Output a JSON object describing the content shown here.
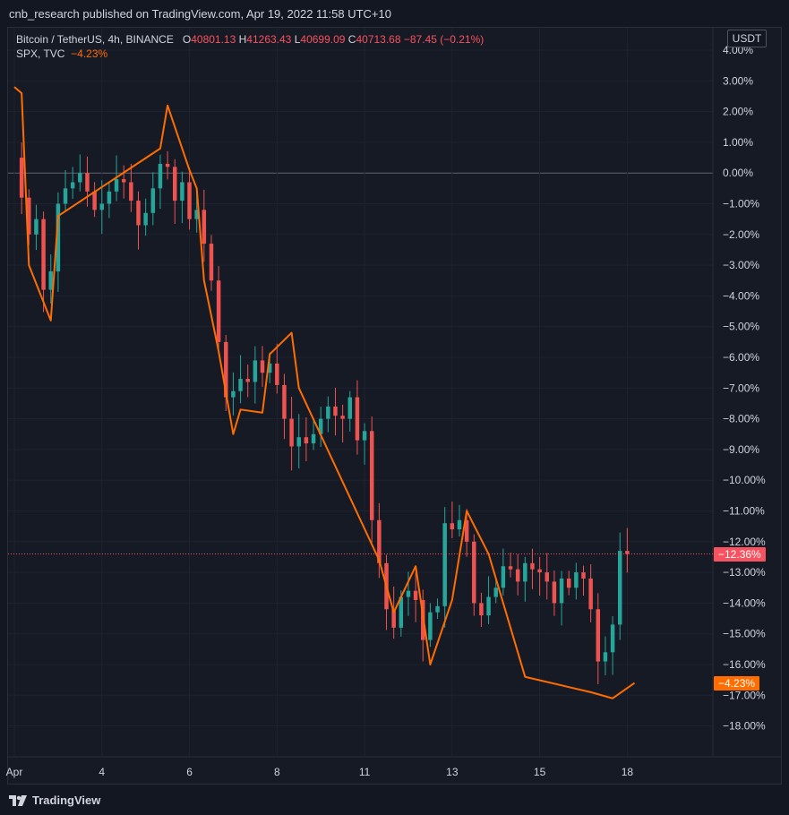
{
  "header": {
    "published_text": "cnb_research published on TradingView.com, Apr 19, 2022 11:58 UTC+10"
  },
  "legend": {
    "symbol": "Bitcoin / TetherUS, 4h, BINANCE",
    "o_label": "O",
    "o_value": "40801.13",
    "h_label": "H",
    "h_value": "41263.43",
    "l_label": "L",
    "l_value": "40699.09",
    "c_label": "C",
    "c_value": "40713.68",
    "change": "−87.45 (−0.21%)",
    "spx_symbol": "SPX, TVC",
    "spx_value": "−4.23%"
  },
  "axis": {
    "currency": "USDT"
  },
  "badges": {
    "btc_last": "−12.36%",
    "spx_last": "−4.23%"
  },
  "footer": {
    "brand": "TradingView"
  },
  "colors": {
    "up": "#26a69a",
    "down": "#ef5350",
    "spx": "#ff6d00",
    "badge_btc": "#f7525f",
    "badge_spx": "#ff6d00"
  },
  "chart_data": {
    "type": "candlestick",
    "y_axis": {
      "unit": "%",
      "min": -18,
      "max": 4,
      "ticks": [
        "4.00%",
        "3.00%",
        "2.00%",
        "1.00%",
        "0.00%",
        "−1.00%",
        "−2.00%",
        "−3.00%",
        "−4.00%",
        "−5.00%",
        "−6.00%",
        "−7.00%",
        "−8.00%",
        "−9.00%",
        "−10.00%",
        "−11.00%",
        "−12.00%",
        "−13.00%",
        "−14.00%",
        "−15.00%",
        "−16.00%",
        "−17.00%",
        "−18.00%"
      ]
    },
    "x_axis": {
      "ticks": [
        {
          "label": "Apr",
          "pos": 0
        },
        {
          "label": "4",
          "pos": 12
        },
        {
          "label": "6",
          "pos": 24
        },
        {
          "label": "8",
          "pos": 36
        },
        {
          "label": "11",
          "pos": 48
        },
        {
          "label": "13",
          "pos": 60
        },
        {
          "label": "15",
          "pos": 72
        },
        {
          "label": "18",
          "pos": 84
        }
      ],
      "max": 95
    },
    "series": [
      {
        "name": "Bitcoin / TetherUS, 4h, BINANCE",
        "kind": "candles",
        "close_path": [
          0.5,
          -0.8,
          -2,
          -1.5,
          -3.8,
          -3.2,
          -1.0,
          -0.5,
          -0.3,
          0.0,
          -0.6,
          -1.2,
          -1.0,
          -0.6,
          -0.2,
          -0.3,
          -0.9,
          -1.7,
          -1.3,
          -0.5,
          0.3,
          0.2,
          -0.9,
          -0.3,
          -1.5,
          -1.2,
          -2.3,
          -3.5,
          -5.5,
          -7.3,
          -7.1,
          -6.7,
          -6.8,
          -6.1,
          -6.5,
          -6.2,
          -6.9,
          -8.0,
          -8.9,
          -8.6,
          -8.8,
          -8.5,
          -8.0,
          -7.6,
          -7.9,
          -8.0,
          -7.3,
          -8.7,
          -8.4,
          -11.3,
          -12.7,
          -14.2,
          -14.8,
          -13.8,
          -13.6,
          -13.9,
          -15.2,
          -14.3,
          -14.1,
          -11.4,
          -11.6,
          -11.3,
          -12.0,
          -14.0,
          -14.4,
          -13.8,
          -13.5,
          -12.8,
          -12.9,
          -13.3,
          -12.7,
          -12.9,
          -13.0,
          -13.3,
          -14.0,
          -13.2,
          -13.5,
          -13.0,
          -13.2,
          -14.2,
          -15.9,
          -15.6,
          -14.7,
          -12.3,
          -12.4
        ]
      },
      {
        "name": "SPX, TVC",
        "kind": "line",
        "points": [
          [
            0,
            2.8
          ],
          [
            1,
            2.6
          ],
          [
            2,
            -3.0
          ],
          [
            5,
            -4.8
          ],
          [
            6,
            -1.4
          ],
          [
            20,
            0.8
          ],
          [
            21,
            2.2
          ],
          [
            24,
            0.1
          ],
          [
            25,
            -0.5
          ],
          [
            26,
            -3.5
          ],
          [
            28,
            -5.8
          ],
          [
            30,
            -8.5
          ],
          [
            31,
            -7.7
          ],
          [
            34,
            -7.8
          ],
          [
            35,
            -5.9
          ],
          [
            38,
            -5.2
          ],
          [
            39,
            -7.0
          ],
          [
            50,
            -12.6
          ],
          [
            52,
            -14.3
          ],
          [
            55,
            -12.8
          ],
          [
            57,
            -16.0
          ],
          [
            60,
            -13.9
          ],
          [
            62,
            -11.0
          ],
          [
            65,
            -12.4
          ],
          [
            70,
            -16.4
          ],
          [
            79,
            -16.9
          ],
          [
            82,
            -17.1
          ],
          [
            85,
            -16.6
          ]
        ]
      }
    ]
  }
}
